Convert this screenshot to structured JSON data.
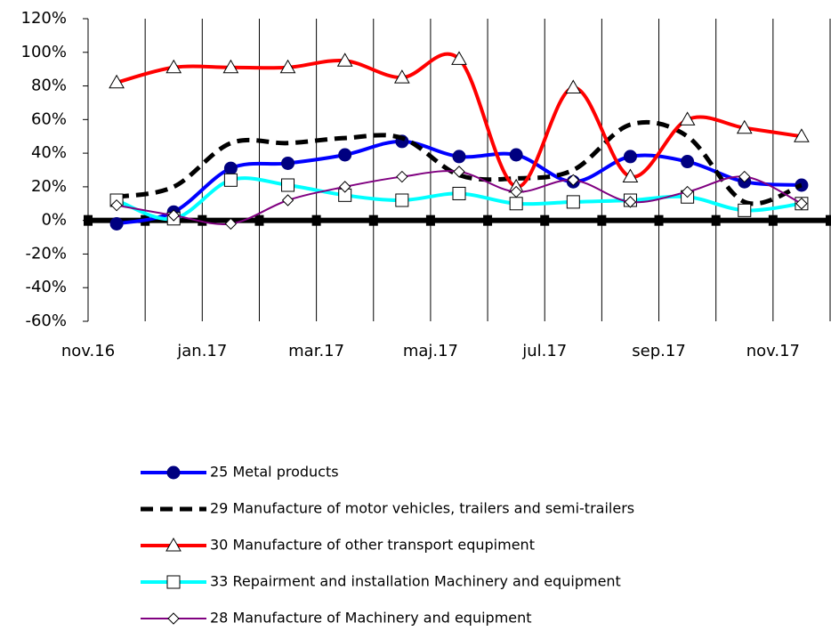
{
  "chart_data": {
    "type": "line",
    "categories": [
      "nov.16",
      null,
      "jan.17",
      null,
      "mar.17",
      null,
      "maj.17",
      null,
      "jul.17",
      null,
      "sep.17",
      null,
      "nov.17"
    ],
    "ylim": [
      -60,
      120
    ],
    "yticks": [
      {
        "value": -60,
        "label": "-60%"
      },
      {
        "value": -40,
        "label": "-40%"
      },
      {
        "value": -20,
        "label": "-20%"
      },
      {
        "value": 0,
        "label": "0%"
      },
      {
        "value": 20,
        "label": "20%"
      },
      {
        "value": 40,
        "label": "40%"
      },
      {
        "value": 60,
        "label": "60%"
      },
      {
        "value": 80,
        "label": "80%"
      },
      {
        "value": 100,
        "label": "100%"
      },
      {
        "value": 120,
        "label": "120%"
      }
    ],
    "grid": true,
    "series": [
      {
        "name": "25 Metal products",
        "color": "#0000ff",
        "values": [
          -2,
          5,
          31,
          34,
          39,
          47,
          38,
          39,
          23,
          38,
          35,
          23,
          21
        ]
      },
      {
        "name": "29 Manufacture of motor vehicles, trailers and semi-trailers",
        "color": "#000000",
        "values": [
          14,
          20,
          46,
          46,
          49,
          49,
          27,
          25,
          30,
          57,
          50,
          11,
          21
        ]
      },
      {
        "name": "30 Manufacture of other transport equpiment",
        "color": "#ff0000",
        "values": [
          82,
          91,
          91,
          91,
          95,
          85,
          96,
          20,
          79,
          26,
          60,
          55,
          50
        ]
      },
      {
        "name": "33 Repairment and installation Machinery and equipment",
        "color": "#00ffff",
        "values": [
          12,
          1,
          24,
          21,
          15,
          12,
          16,
          10,
          11,
          12,
          14,
          6,
          10
        ]
      },
      {
        "name": "28 Manufacture of Machinery and equipment",
        "color": "#800080",
        "values": [
          9,
          3,
          -2,
          12,
          20,
          26,
          29,
          17,
          24,
          11,
          17,
          26,
          10
        ]
      }
    ]
  }
}
